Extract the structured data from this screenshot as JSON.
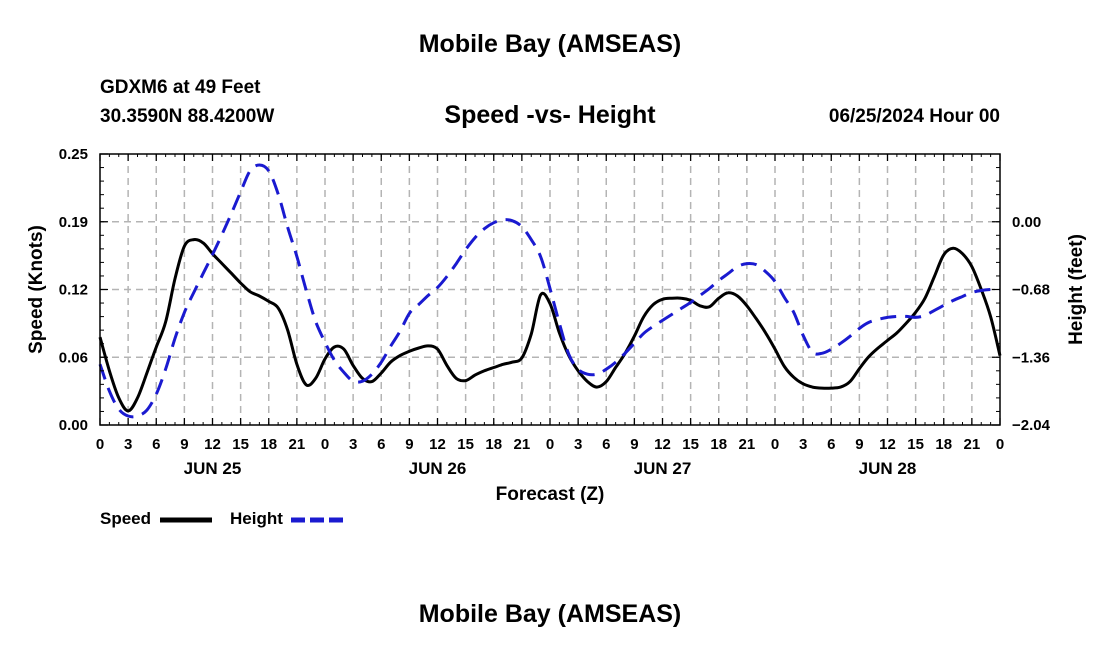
{
  "header": {
    "title": "Mobile Bay (AMSEAS)",
    "station": "GDXM6 at 49 Feet",
    "coords": "30.3590N  88.4200W",
    "datetime": "06/25/2024 Hour 00"
  },
  "footer": {
    "title": "Mobile Bay (AMSEAS)"
  },
  "legend": {
    "speed_label": "Speed",
    "height_label": "Height"
  },
  "colors": {
    "speed": "#000000",
    "height": "#1a1ad0",
    "grid": "#b4b4b4"
  },
  "chart_data": {
    "type": "line",
    "title": "Speed -vs- Height",
    "xlabel": "Forecast (Z)",
    "ylabel": "Speed (Knots)",
    "y2label": "Height (feet)",
    "x_range": [
      0,
      96
    ],
    "ylim": [
      0,
      0.25
    ],
    "y2lim": [
      -2.04,
      0.68
    ],
    "y_ticks": [
      "0.00",
      "0.06",
      "0.12",
      "0.19",
      "0.25"
    ],
    "y2_ticks": [
      "−2.04",
      "−1.36",
      "−0.68",
      "0.00"
    ],
    "x_tick_labels": [
      "0",
      "3",
      "6",
      "9",
      "12",
      "15",
      "18",
      "21",
      "0",
      "3",
      "6",
      "9",
      "12",
      "15",
      "18",
      "21",
      "0",
      "3",
      "6",
      "9",
      "12",
      "15",
      "18",
      "21",
      "0",
      "3",
      "6",
      "9",
      "12",
      "15",
      "18",
      "21",
      "0"
    ],
    "day_labels": [
      {
        "label": "JUN 25",
        "hour": 12
      },
      {
        "label": "JUN 26",
        "hour": 36
      },
      {
        "label": "JUN 27",
        "hour": 60
      },
      {
        "label": "JUN 28",
        "hour": 84
      }
    ],
    "grid": true,
    "legend_position": "bottom-left",
    "series": [
      {
        "name": "Speed",
        "axis": "left",
        "style": "solid",
        "points": [
          [
            0,
            0.081
          ],
          [
            1,
            0.05
          ],
          [
            2,
            0.025
          ],
          [
            3,
            0.013
          ],
          [
            4,
            0.025
          ],
          [
            5,
            0.048
          ],
          [
            6,
            0.072
          ],
          [
            7,
            0.095
          ],
          [
            8,
            0.135
          ],
          [
            9,
            0.165
          ],
          [
            10,
            0.171
          ],
          [
            11,
            0.168
          ],
          [
            12,
            0.158
          ],
          [
            13,
            0.149
          ],
          [
            14,
            0.14
          ],
          [
            15,
            0.131
          ],
          [
            16,
            0.123
          ],
          [
            17,
            0.119
          ],
          [
            18,
            0.114
          ],
          [
            19,
            0.108
          ],
          [
            20,
            0.088
          ],
          [
            21,
            0.056
          ],
          [
            22,
            0.037
          ],
          [
            23,
            0.043
          ],
          [
            24,
            0.061
          ],
          [
            25,
            0.072
          ],
          [
            26,
            0.07
          ],
          [
            27,
            0.055
          ],
          [
            28,
            0.043
          ],
          [
            29,
            0.04
          ],
          [
            30,
            0.048
          ],
          [
            31,
            0.058
          ],
          [
            32,
            0.064
          ],
          [
            33,
            0.068
          ],
          [
            34,
            0.071
          ],
          [
            35,
            0.073
          ],
          [
            36,
            0.07
          ],
          [
            37,
            0.055
          ],
          [
            38,
            0.043
          ],
          [
            39,
            0.041
          ],
          [
            40,
            0.046
          ],
          [
            41,
            0.05
          ],
          [
            42,
            0.053
          ],
          [
            43,
            0.056
          ],
          [
            44,
            0.058
          ],
          [
            45,
            0.062
          ],
          [
            46,
            0.084
          ],
          [
            47,
            0.12
          ],
          [
            48,
            0.112
          ],
          [
            49,
            0.085
          ],
          [
            50,
            0.064
          ],
          [
            51,
            0.05
          ],
          [
            52,
            0.04
          ],
          [
            53,
            0.035
          ],
          [
            54,
            0.04
          ],
          [
            55,
            0.053
          ],
          [
            56,
            0.066
          ],
          [
            57,
            0.082
          ],
          [
            58,
            0.1
          ],
          [
            59,
            0.111
          ],
          [
            60,
            0.116
          ],
          [
            61,
            0.117
          ],
          [
            62,
            0.117
          ],
          [
            63,
            0.115
          ],
          [
            64,
            0.11
          ],
          [
            65,
            0.109
          ],
          [
            66,
            0.117
          ],
          [
            67,
            0.122
          ],
          [
            68,
            0.119
          ],
          [
            69,
            0.11
          ],
          [
            70,
            0.098
          ],
          [
            71,
            0.085
          ],
          [
            72,
            0.07
          ],
          [
            73,
            0.054
          ],
          [
            74,
            0.044
          ],
          [
            75,
            0.038
          ],
          [
            76,
            0.035
          ],
          [
            77,
            0.034
          ],
          [
            78,
            0.034
          ],
          [
            79,
            0.035
          ],
          [
            80,
            0.04
          ],
          [
            81,
            0.052
          ],
          [
            82,
            0.063
          ],
          [
            83,
            0.071
          ],
          [
            84,
            0.078
          ],
          [
            85,
            0.085
          ],
          [
            86,
            0.094
          ],
          [
            87,
            0.104
          ],
          [
            88,
            0.117
          ],
          [
            89,
            0.137
          ],
          [
            90,
            0.157
          ],
          [
            91,
            0.163
          ],
          [
            92,
            0.158
          ],
          [
            93,
            0.146
          ],
          [
            94,
            0.125
          ],
          [
            95,
            0.1
          ],
          [
            96,
            0.064
          ]
        ]
      },
      {
        "name": "Height",
        "axis": "right",
        "style": "dashed",
        "points": [
          [
            0,
            -1.43
          ],
          [
            1,
            -1.7
          ],
          [
            2,
            -1.88
          ],
          [
            3,
            -1.95
          ],
          [
            4,
            -1.95
          ],
          [
            5,
            -1.89
          ],
          [
            6,
            -1.73
          ],
          [
            7,
            -1.48
          ],
          [
            8,
            -1.17
          ],
          [
            9,
            -0.91
          ],
          [
            10,
            -0.71
          ],
          [
            11,
            -0.52
          ],
          [
            12,
            -0.33
          ],
          [
            13,
            -0.13
          ],
          [
            14,
            0.08
          ],
          [
            15,
            0.3
          ],
          [
            16,
            0.51
          ],
          [
            17,
            0.57
          ],
          [
            18,
            0.51
          ],
          [
            19,
            0.28
          ],
          [
            20,
            -0.05
          ],
          [
            21,
            -0.35
          ],
          [
            22,
            -0.69
          ],
          [
            23,
            -1.0
          ],
          [
            24,
            -1.21
          ],
          [
            25,
            -1.39
          ],
          [
            26,
            -1.51
          ],
          [
            27,
            -1.6
          ],
          [
            28,
            -1.6
          ],
          [
            29,
            -1.53
          ],
          [
            30,
            -1.41
          ],
          [
            31,
            -1.25
          ],
          [
            32,
            -1.1
          ],
          [
            33,
            -0.92
          ],
          [
            34,
            -0.83
          ],
          [
            35,
            -0.74
          ],
          [
            36,
            -0.66
          ],
          [
            37,
            -0.55
          ],
          [
            38,
            -0.42
          ],
          [
            39,
            -0.28
          ],
          [
            40,
            -0.16
          ],
          [
            41,
            -0.07
          ],
          [
            42,
            -0.01
          ],
          [
            43,
            0.02
          ],
          [
            44,
            0.01
          ],
          [
            45,
            -0.05
          ],
          [
            46,
            -0.18
          ],
          [
            47,
            -0.35
          ],
          [
            48,
            -0.67
          ],
          [
            49,
            -1.02
          ],
          [
            50,
            -1.33
          ],
          [
            51,
            -1.48
          ],
          [
            52,
            -1.53
          ],
          [
            53,
            -1.53
          ],
          [
            54,
            -1.48
          ],
          [
            55,
            -1.41
          ],
          [
            56,
            -1.32
          ],
          [
            57,
            -1.22
          ],
          [
            58,
            -1.12
          ],
          [
            59,
            -1.05
          ],
          [
            60,
            -0.99
          ],
          [
            61,
            -0.93
          ],
          [
            62,
            -0.87
          ],
          [
            63,
            -0.81
          ],
          [
            64,
            -0.74
          ],
          [
            65,
            -0.67
          ],
          [
            66,
            -0.59
          ],
          [
            67,
            -0.52
          ],
          [
            68,
            -0.45
          ],
          [
            69,
            -0.42
          ],
          [
            70,
            -0.43
          ],
          [
            71,
            -0.5
          ],
          [
            72,
            -0.6
          ],
          [
            73,
            -0.76
          ],
          [
            74,
            -0.91
          ],
          [
            75,
            -1.14
          ],
          [
            76,
            -1.31
          ],
          [
            77,
            -1.32
          ],
          [
            78,
            -1.28
          ],
          [
            79,
            -1.22
          ],
          [
            80,
            -1.15
          ],
          [
            81,
            -1.07
          ],
          [
            82,
            -1.01
          ],
          [
            83,
            -0.98
          ],
          [
            84,
            -0.96
          ],
          [
            85,
            -0.95
          ],
          [
            86,
            -0.95
          ],
          [
            87,
            -0.96
          ],
          [
            88,
            -0.94
          ],
          [
            89,
            -0.89
          ],
          [
            90,
            -0.84
          ],
          [
            91,
            -0.79
          ],
          [
            92,
            -0.75
          ],
          [
            93,
            -0.71
          ],
          [
            94,
            -0.69
          ],
          [
            95,
            -0.68
          ],
          [
            96,
            -0.68
          ]
        ]
      }
    ]
  }
}
